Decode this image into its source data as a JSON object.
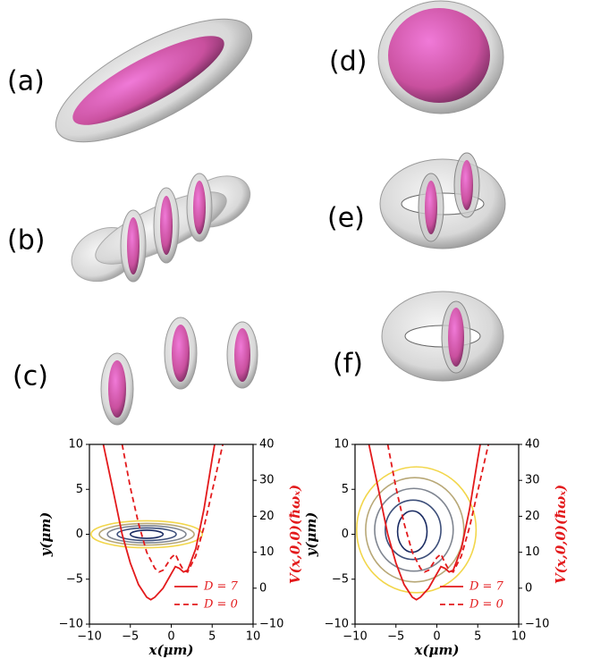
{
  "panels": [
    "(a)",
    "(b)",
    "(c)",
    "(d)",
    "(e)",
    "(f)"
  ],
  "chart_data": [
    {
      "type": "line",
      "xlabel": "x(μm)",
      "ylabel": "y(μm)",
      "y2label": "V(x,0,0)(ħωₓ)",
      "xlim": [
        -10,
        10
      ],
      "ylim": [
        -10,
        10
      ],
      "y2lim": [
        -10,
        40
      ],
      "xticks": [
        {
          "value": -10,
          "label": "−10"
        },
        {
          "value": -5,
          "label": "−5"
        },
        0,
        5,
        10
      ],
      "yticks": [
        {
          "value": -10,
          "label": "−10"
        },
        {
          "value": -5,
          "label": "−5"
        },
        0,
        5,
        10
      ],
      "y2ticks": [
        {
          "value": -10,
          "label": "−10"
        },
        0,
        10,
        20,
        30,
        40
      ],
      "contours": [
        {
          "color": "#f2d64a",
          "cx": -3,
          "cy": 0,
          "rx": 6.8,
          "ry": 1.5
        },
        {
          "color": "#b8a877",
          "cx": -3,
          "cy": 0,
          "rx": 5.8,
          "ry": 1.2
        },
        {
          "color": "#7f8590",
          "cx": -3,
          "cy": 0,
          "rx": 4.8,
          "ry": 0.95
        },
        {
          "color": "#3d4f7a",
          "cx": -3,
          "cy": 0,
          "rx": 3.6,
          "ry": 0.7
        },
        {
          "color": "#1b2c63",
          "cx": -3,
          "cy": 0,
          "rx": 2,
          "ry": 0.45
        }
      ],
      "series": [
        {
          "name": "D = 7",
          "color": "#e31a1c",
          "dash": false,
          "axis": "y2",
          "x": [
            -8.3,
            -7,
            -6,
            -5,
            -4,
            -3,
            -2.5,
            -2,
            -1,
            0,
            0.5,
            1,
            1.5,
            2,
            3,
            4,
            5,
            5.3
          ],
          "values": [
            40,
            26,
            15,
            7,
            1,
            -2.5,
            -3.2,
            -2.5,
            0,
            4,
            6,
            5.5,
            4.5,
            5,
            11,
            22,
            36,
            40
          ]
        },
        {
          "name": "D = 0",
          "color": "#e31a1c",
          "dash": true,
          "axis": "y2",
          "x": [
            -6,
            -5,
            -4,
            -3,
            -2,
            -1.5,
            -1,
            0,
            0.5,
            1,
            1.5,
            2,
            3,
            4,
            5,
            6,
            6.3
          ],
          "values": [
            40,
            28,
            18,
            10,
            5.5,
            4.5,
            5,
            8.5,
            9.5,
            7,
            5,
            4.5,
            9,
            17,
            27,
            37,
            40
          ]
        }
      ]
    },
    {
      "type": "line",
      "xlabel": "x(μm)",
      "ylabel": "y(μm)",
      "y2label": "V(x,0,0)(ħωₓ)",
      "xlim": [
        -10,
        10
      ],
      "ylim": [
        -10,
        10
      ],
      "y2lim": [
        -10,
        40
      ],
      "xticks": [
        {
          "value": -10,
          "label": "−10"
        },
        {
          "value": -5,
          "label": "−5"
        },
        0,
        5,
        10
      ],
      "yticks": [
        {
          "value": -10,
          "label": "−10"
        },
        {
          "value": -5,
          "label": "−5"
        },
        0,
        5,
        10
      ],
      "y2ticks": [
        {
          "value": -10,
          "label": "−10"
        },
        0,
        10,
        20,
        30,
        40
      ],
      "contours": [
        {
          "color": "#f2d64a",
          "cx": -2.5,
          "cy": 0.5,
          "rx": 7.3,
          "ry": 7
        },
        {
          "color": "#b8a877",
          "cx": -2.7,
          "cy": 0.5,
          "rx": 6,
          "ry": 5.8
        },
        {
          "color": "#7f8590",
          "cx": -2.8,
          "cy": 0.5,
          "rx": 4.8,
          "ry": 4.6
        },
        {
          "color": "#3d4f7a",
          "cx": -2.9,
          "cy": 0.5,
          "rx": 3.4,
          "ry": 3.3
        },
        {
          "color": "#1b2c63",
          "cx": -3,
          "cy": 0.3,
          "rx": 1.8,
          "ry": 2.3
        }
      ],
      "series": [
        {
          "name": "D = 7",
          "color": "#e31a1c",
          "dash": false,
          "axis": "y2",
          "x": [
            -8.3,
            -7,
            -6,
            -5,
            -4,
            -3,
            -2.5,
            -2,
            -1,
            0,
            0.5,
            1,
            1.5,
            2,
            3,
            4,
            5,
            5.3
          ],
          "values": [
            40,
            26,
            15,
            7,
            1,
            -2.5,
            -3.2,
            -2.5,
            0,
            4,
            6,
            5.5,
            4.5,
            5,
            11,
            22,
            36,
            40
          ]
        },
        {
          "name": "D = 0",
          "color": "#e31a1c",
          "dash": true,
          "axis": "y2",
          "x": [
            -6,
            -5,
            -4,
            -3,
            -2,
            -1.5,
            -1,
            0,
            0.5,
            1,
            1.5,
            2,
            3,
            4,
            5,
            6,
            6.3
          ],
          "values": [
            40,
            28,
            18,
            10,
            5.5,
            4.5,
            5,
            8.5,
            9.5,
            7,
            5,
            4.5,
            9,
            17,
            27,
            37,
            40
          ]
        }
      ]
    }
  ]
}
